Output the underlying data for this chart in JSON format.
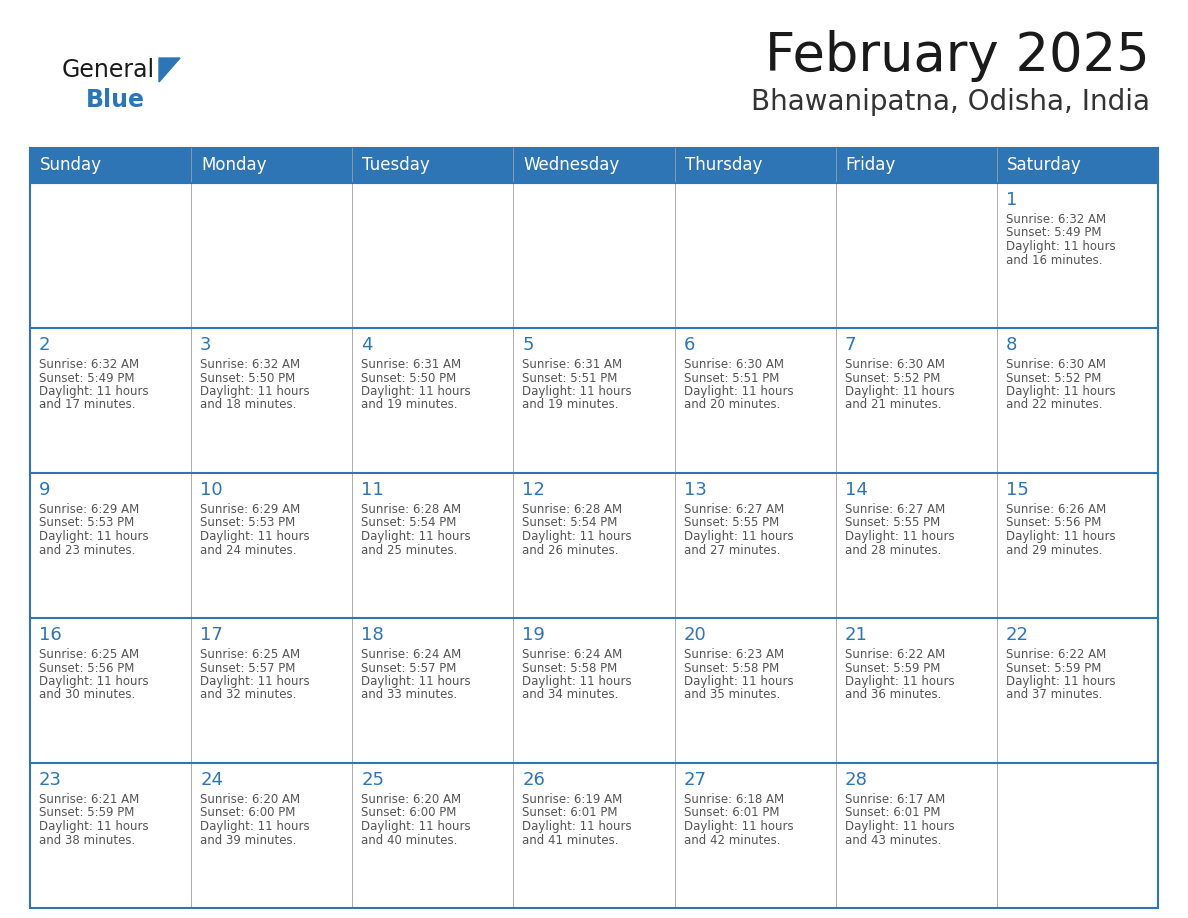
{
  "title": "February 2025",
  "subtitle": "Bhawanipatna, Odisha, India",
  "header_bg": "#2E75B6",
  "header_text_color": "#FFFFFF",
  "cell_bg": "#FFFFFF",
  "border_color": "#2E75B6",
  "grid_color": "#AAAAAA",
  "day_number_color": "#2E75B6",
  "detail_text_color": "#555555",
  "days_of_week": [
    "Sunday",
    "Monday",
    "Tuesday",
    "Wednesday",
    "Thursday",
    "Friday",
    "Saturday"
  ],
  "calendar_data": [
    [
      null,
      null,
      null,
      null,
      null,
      null,
      {
        "day": "1",
        "sunrise": "6:32 AM",
        "sunset": "5:49 PM",
        "daylight": "11 hours\nand 16 minutes."
      }
    ],
    [
      {
        "day": "2",
        "sunrise": "6:32 AM",
        "sunset": "5:49 PM",
        "daylight": "11 hours\nand 17 minutes."
      },
      {
        "day": "3",
        "sunrise": "6:32 AM",
        "sunset": "5:50 PM",
        "daylight": "11 hours\nand 18 minutes."
      },
      {
        "day": "4",
        "sunrise": "6:31 AM",
        "sunset": "5:50 PM",
        "daylight": "11 hours\nand 19 minutes."
      },
      {
        "day": "5",
        "sunrise": "6:31 AM",
        "sunset": "5:51 PM",
        "daylight": "11 hours\nand 19 minutes."
      },
      {
        "day": "6",
        "sunrise": "6:30 AM",
        "sunset": "5:51 PM",
        "daylight": "11 hours\nand 20 minutes."
      },
      {
        "day": "7",
        "sunrise": "6:30 AM",
        "sunset": "5:52 PM",
        "daylight": "11 hours\nand 21 minutes."
      },
      {
        "day": "8",
        "sunrise": "6:30 AM",
        "sunset": "5:52 PM",
        "daylight": "11 hours\nand 22 minutes."
      }
    ],
    [
      {
        "day": "9",
        "sunrise": "6:29 AM",
        "sunset": "5:53 PM",
        "daylight": "11 hours\nand 23 minutes."
      },
      {
        "day": "10",
        "sunrise": "6:29 AM",
        "sunset": "5:53 PM",
        "daylight": "11 hours\nand 24 minutes."
      },
      {
        "day": "11",
        "sunrise": "6:28 AM",
        "sunset": "5:54 PM",
        "daylight": "11 hours\nand 25 minutes."
      },
      {
        "day": "12",
        "sunrise": "6:28 AM",
        "sunset": "5:54 PM",
        "daylight": "11 hours\nand 26 minutes."
      },
      {
        "day": "13",
        "sunrise": "6:27 AM",
        "sunset": "5:55 PM",
        "daylight": "11 hours\nand 27 minutes."
      },
      {
        "day": "14",
        "sunrise": "6:27 AM",
        "sunset": "5:55 PM",
        "daylight": "11 hours\nand 28 minutes."
      },
      {
        "day": "15",
        "sunrise": "6:26 AM",
        "sunset": "5:56 PM",
        "daylight": "11 hours\nand 29 minutes."
      }
    ],
    [
      {
        "day": "16",
        "sunrise": "6:25 AM",
        "sunset": "5:56 PM",
        "daylight": "11 hours\nand 30 minutes."
      },
      {
        "day": "17",
        "sunrise": "6:25 AM",
        "sunset": "5:57 PM",
        "daylight": "11 hours\nand 32 minutes."
      },
      {
        "day": "18",
        "sunrise": "6:24 AM",
        "sunset": "5:57 PM",
        "daylight": "11 hours\nand 33 minutes."
      },
      {
        "day": "19",
        "sunrise": "6:24 AM",
        "sunset": "5:58 PM",
        "daylight": "11 hours\nand 34 minutes."
      },
      {
        "day": "20",
        "sunrise": "6:23 AM",
        "sunset": "5:58 PM",
        "daylight": "11 hours\nand 35 minutes."
      },
      {
        "day": "21",
        "sunrise": "6:22 AM",
        "sunset": "5:59 PM",
        "daylight": "11 hours\nand 36 minutes."
      },
      {
        "day": "22",
        "sunrise": "6:22 AM",
        "sunset": "5:59 PM",
        "daylight": "11 hours\nand 37 minutes."
      }
    ],
    [
      {
        "day": "23",
        "sunrise": "6:21 AM",
        "sunset": "5:59 PM",
        "daylight": "11 hours\nand 38 minutes."
      },
      {
        "day": "24",
        "sunrise": "6:20 AM",
        "sunset": "6:00 PM",
        "daylight": "11 hours\nand 39 minutes."
      },
      {
        "day": "25",
        "sunrise": "6:20 AM",
        "sunset": "6:00 PM",
        "daylight": "11 hours\nand 40 minutes."
      },
      {
        "day": "26",
        "sunrise": "6:19 AM",
        "sunset": "6:01 PM",
        "daylight": "11 hours\nand 41 minutes."
      },
      {
        "day": "27",
        "sunrise": "6:18 AM",
        "sunset": "6:01 PM",
        "daylight": "11 hours\nand 42 minutes."
      },
      {
        "day": "28",
        "sunrise": "6:17 AM",
        "sunset": "6:01 PM",
        "daylight": "11 hours\nand 43 minutes."
      },
      null
    ]
  ],
  "logo_general_color": "#1A1A1A",
  "logo_blue_color": "#2E75B6",
  "logo_triangle_color": "#2E75B6",
  "title_color": "#1A1A1A",
  "subtitle_color": "#333333",
  "title_fontsize": 38,
  "subtitle_fontsize": 20,
  "header_fontsize": 12,
  "day_num_fontsize": 13,
  "detail_fontsize": 8.5
}
